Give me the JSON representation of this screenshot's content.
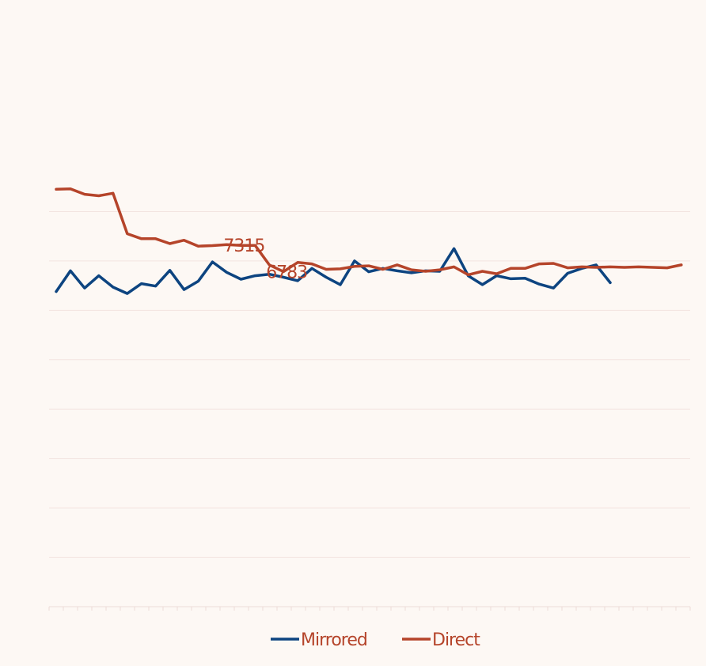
{
  "chart_data": {
    "type": "line",
    "title": "",
    "xlabel": "",
    "ylabel": "",
    "ylim": [
      0,
      9000
    ],
    "grid": true,
    "legend_position": "bottom",
    "colors": {
      "background": "#fdf8f4",
      "grid": "#f3e4e0",
      "axis": "#eddcd7",
      "text": "#b5442a"
    },
    "x": [
      1,
      2,
      3,
      4,
      5,
      6,
      7,
      8,
      9,
      10,
      11,
      12,
      13,
      14,
      15,
      16,
      17,
      18,
      19,
      20,
      21,
      22,
      23,
      24,
      25,
      26,
      27,
      28,
      29,
      30,
      31,
      32,
      33,
      34,
      35,
      36,
      37,
      38,
      39,
      40,
      41,
      42,
      43,
      44,
      45
    ],
    "series": [
      {
        "name": "Mirrored",
        "color": "#0d4480",
        "values": [
          6380,
          6800,
          6450,
          6700,
          6470,
          6340,
          6540,
          6490,
          6810,
          6420,
          6590,
          6980,
          6770,
          6630,
          6700,
          6730,
          6670,
          6600,
          6850,
          6670,
          6520,
          7000,
          6780,
          6850,
          6800,
          6760,
          6800,
          6790,
          7250,
          6700,
          6520,
          6700,
          6640,
          6650,
          6530,
          6450,
          6750,
          6850,
          6920,
          6560,
          null,
          null,
          null,
          null,
          null
        ]
      },
      {
        "name": "Direct",
        "color": "#b5442a",
        "values": [
          8450,
          8460,
          8350,
          8320,
          8370,
          7550,
          7450,
          7450,
          7350,
          7420,
          7300,
          7310,
          7330,
          7315,
          7315,
          6920,
          6783,
          6970,
          6940,
          6830,
          6840,
          6890,
          6900,
          6830,
          6920,
          6820,
          6790,
          6820,
          6880,
          6720,
          6790,
          6740,
          6850,
          6850,
          6940,
          6950,
          6860,
          6880,
          6870,
          6880,
          6870,
          6880,
          6870,
          6860,
          6920
        ]
      }
    ],
    "data_labels": [
      {
        "series": "Direct",
        "x": 14,
        "text": "7315"
      },
      {
        "series": "Direct",
        "x": 17,
        "text": "6783"
      }
    ]
  }
}
